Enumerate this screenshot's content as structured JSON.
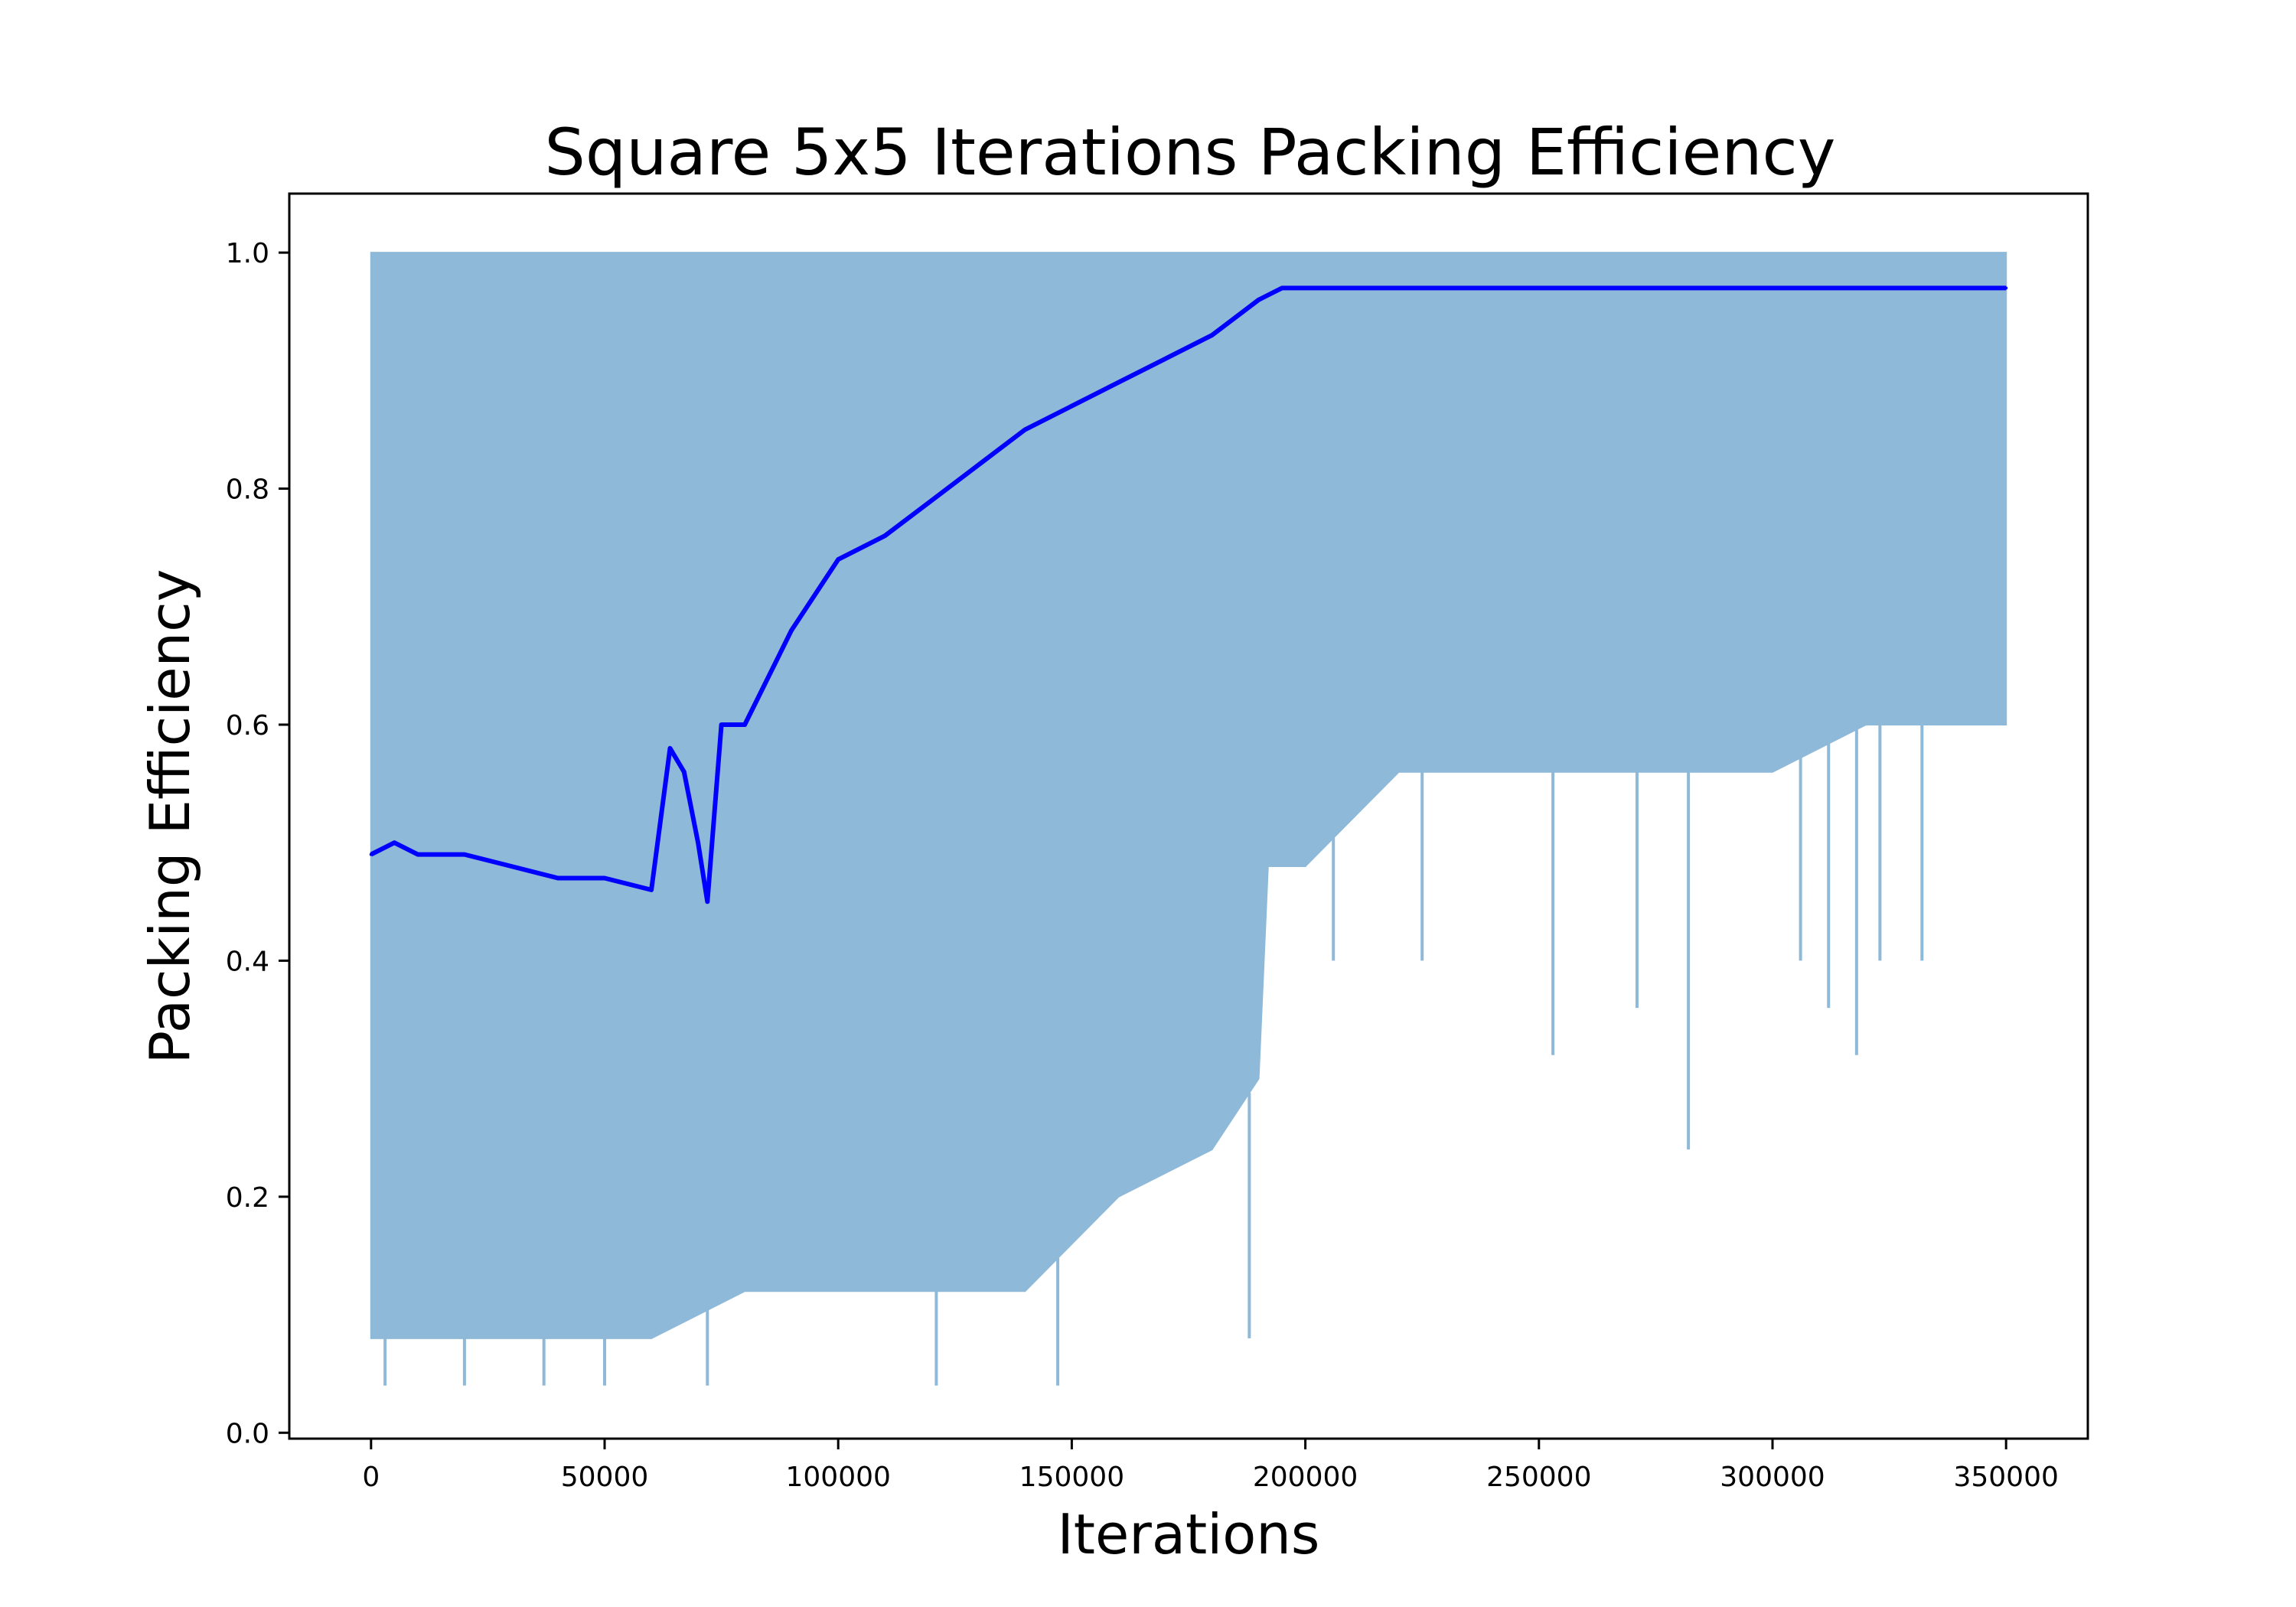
{
  "chart_data": {
    "type": "line",
    "title": "Square 5x5 Iterations Packing Efficiency",
    "xlabel": "Iterations",
    "ylabel": "Packing Efficiency",
    "xlim": [
      -17500,
      367500
    ],
    "ylim": [
      -0.005,
      1.05
    ],
    "x_ticks": [
      0,
      50000,
      100000,
      150000,
      200000,
      250000,
      300000,
      350000
    ],
    "x_tick_labels": [
      "0",
      "50000",
      "100000",
      "150000",
      "200000",
      "250000",
      "300000",
      "350000"
    ],
    "y_ticks": [
      0.0,
      0.2,
      0.4,
      0.6,
      0.8,
      1.0
    ],
    "y_tick_labels": [
      "0.0",
      "0.2",
      "0.4",
      "0.6",
      "0.8",
      "1.0"
    ],
    "grid": false,
    "legend": "none",
    "colors": {
      "raw": "#8fb9d8",
      "smoothed": "#0000ff"
    },
    "series": [
      {
        "role": "raw",
        "x": [
          0,
          20000,
          40000,
          60000,
          80000,
          100000,
          120000,
          140000,
          160000,
          180000,
          190000,
          192000,
          200000,
          220000,
          240000,
          260000,
          280000,
          300000,
          320000,
          340000,
          350000
        ],
        "upper": [
          1.0,
          1.0,
          1.0,
          1.0,
          1.0,
          1.0,
          1.0,
          1.0,
          1.0,
          1.0,
          1.0,
          1.0,
          1.0,
          1.0,
          1.0,
          1.0,
          1.0,
          1.0,
          1.0,
          1.0,
          1.0
        ],
        "lower": [
          0.08,
          0.08,
          0.08,
          0.08,
          0.12,
          0.12,
          0.12,
          0.12,
          0.2,
          0.24,
          0.3,
          0.48,
          0.48,
          0.56,
          0.56,
          0.56,
          0.56,
          0.56,
          0.6,
          0.6,
          0.6
        ],
        "min_spikes": [
          [
            3000,
            0.04
          ],
          [
            20000,
            0.04
          ],
          [
            37000,
            0.04
          ],
          [
            50000,
            0.04
          ],
          [
            72000,
            0.04
          ],
          [
            121000,
            0.04
          ],
          [
            147000,
            0.04
          ],
          [
            188000,
            0.08
          ],
          [
            206000,
            0.4
          ],
          [
            225000,
            0.4
          ],
          [
            253000,
            0.32
          ],
          [
            271000,
            0.36
          ],
          [
            282000,
            0.24
          ],
          [
            306000,
            0.4
          ],
          [
            312000,
            0.36
          ],
          [
            318000,
            0.32
          ],
          [
            323000,
            0.4
          ],
          [
            332000,
            0.4
          ]
        ]
      },
      {
        "role": "smoothed",
        "x": [
          0,
          5000,
          10000,
          20000,
          30000,
          40000,
          50000,
          60000,
          64000,
          67000,
          70000,
          72000,
          75000,
          80000,
          90000,
          100000,
          110000,
          120000,
          130000,
          140000,
          150000,
          160000,
          170000,
          180000,
          190000,
          195000,
          200000,
          220000,
          240000,
          260000,
          280000,
          300000,
          320000,
          340000,
          350000
        ],
        "y": [
          0.49,
          0.5,
          0.49,
          0.49,
          0.48,
          0.47,
          0.47,
          0.46,
          0.58,
          0.56,
          0.5,
          0.45,
          0.6,
          0.6,
          0.68,
          0.74,
          0.76,
          0.79,
          0.82,
          0.85,
          0.87,
          0.89,
          0.91,
          0.93,
          0.96,
          0.97,
          0.97,
          0.97,
          0.97,
          0.97,
          0.97,
          0.97,
          0.97,
          0.97,
          0.97
        ]
      }
    ]
  }
}
